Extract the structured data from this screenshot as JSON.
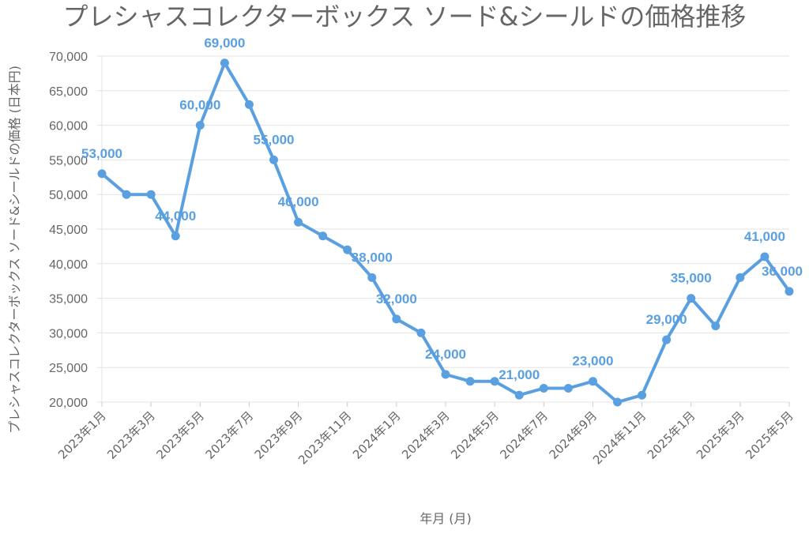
{
  "chart_data": {
    "type": "line",
    "title": "プレシャスコレクターボックス ソード&シールドの価格推移",
    "xlabel": "年月 (月)",
    "ylabel": "プレシャスコレクターボックス ソード&シールドの価格 (日本円)",
    "ylim": [
      20000,
      70000
    ],
    "grid": true,
    "color": "#5aa0e0",
    "x_tick_labels": [
      "2023年1月",
      "2023年3月",
      "2023年5月",
      "2023年7月",
      "2023年9月",
      "2023年11月",
      "2024年1月",
      "2024年3月",
      "2024年5月",
      "2024年7月",
      "2024年9月",
      "2024年11月",
      "2025年1月",
      "2025年3月",
      "2025年5月"
    ],
    "y_tick_labels": [
      "20,000",
      "25,000",
      "30,000",
      "35,000",
      "40,000",
      "45,000",
      "50,000",
      "55,000",
      "60,000",
      "65,000",
      "70,000"
    ],
    "y_ticks": [
      20000,
      25000,
      30000,
      35000,
      40000,
      45000,
      50000,
      55000,
      60000,
      65000,
      70000
    ],
    "series": [
      {
        "categories": [
          "2023年1月",
          "2023年2月",
          "2023年3月",
          "2023年4月",
          "2023年5月",
          "2023年6月",
          "2023年7月",
          "2023年8月",
          "2023年9月",
          "2023年10月",
          "2023年11月",
          "2023年12月",
          "2024年1月",
          "2024年2月",
          "2024年3月",
          "2024年4月",
          "2024年5月",
          "2024年6月",
          "2024年7月",
          "2024年8月",
          "2024年9月",
          "2024年10月",
          "2024年11月",
          "2024年12月",
          "2025年1月",
          "2025年2月",
          "2025年3月",
          "2025年4月",
          "2025年5月"
        ],
        "values": [
          53000,
          50000,
          50000,
          44000,
          60000,
          69000,
          63000,
          55000,
          46000,
          44000,
          42000,
          38000,
          32000,
          30000,
          24000,
          23000,
          23000,
          21000,
          22000,
          22000,
          23000,
          20000,
          21000,
          29000,
          35000,
          31000,
          38000,
          41000,
          36000
        ]
      }
    ],
    "data_labels": [
      {
        "index": 0,
        "text": "53,000"
      },
      {
        "index": 3,
        "text": "44,000"
      },
      {
        "index": 4,
        "text": "60,000"
      },
      {
        "index": 5,
        "text": "69,000"
      },
      {
        "index": 7,
        "text": "55,000"
      },
      {
        "index": 8,
        "text": "46,000"
      },
      {
        "index": 11,
        "text": "38,000"
      },
      {
        "index": 12,
        "text": "32,000"
      },
      {
        "index": 14,
        "text": "24,000"
      },
      {
        "index": 17,
        "text": "21,000"
      },
      {
        "index": 20,
        "text": "23,000"
      },
      {
        "index": 23,
        "text": "29,000"
      },
      {
        "index": 24,
        "text": "35,000"
      },
      {
        "index": 27,
        "text": "41,000"
      },
      {
        "index": 28,
        "text": "36,000"
      }
    ]
  }
}
